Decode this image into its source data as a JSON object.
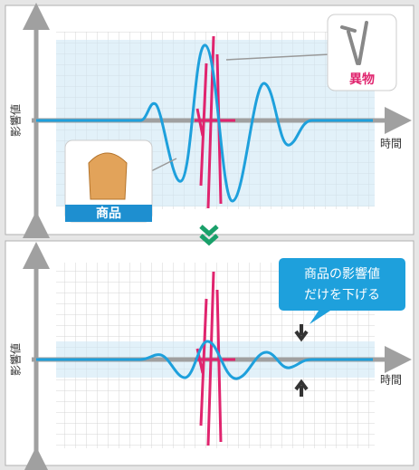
{
  "top_panel": {
    "y_axis_label": "影響値",
    "x_axis_label": "時間",
    "foreign_label": "異物",
    "product_label": "商品"
  },
  "bottom_panel": {
    "y_axis_label": "影響値",
    "x_axis_label": "時間",
    "callout_lines": [
      "商品の影響値",
      "だけを下げる"
    ]
  }
}
